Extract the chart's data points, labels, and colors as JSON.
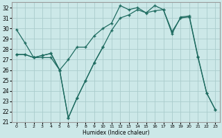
{
  "xlabel": "Humidex (Indice chaleur)",
  "bg_color": "#cce8e8",
  "grid_color": "#aacccc",
  "line_color": "#1e6b60",
  "xlim": [
    -0.5,
    23.5
  ],
  "ylim": [
    21,
    32.5
  ],
  "xticks": [
    0,
    1,
    2,
    3,
    4,
    5,
    6,
    7,
    8,
    9,
    10,
    11,
    12,
    13,
    14,
    15,
    16,
    17,
    18,
    19,
    20,
    21,
    22,
    23
  ],
  "yticks": [
    21,
    22,
    23,
    24,
    25,
    26,
    27,
    28,
    29,
    30,
    31,
    32
  ],
  "series1": {
    "x": [
      0,
      1,
      2,
      3,
      4,
      5,
      6,
      7,
      8,
      9,
      10,
      11,
      12,
      13,
      14,
      15,
      16,
      17,
      18,
      19,
      20,
      21,
      22,
      23
    ],
    "y": [
      29.9,
      28.6,
      27.2,
      27.2,
      27.2,
      26.0,
      27.0,
      28.2,
      28.2,
      29.3,
      30.0,
      30.5,
      32.2,
      31.8,
      32.0,
      31.5,
      31.7,
      31.8,
      29.7,
      31.0,
      31.1,
      27.2,
      23.8,
      22.2
    ]
  },
  "series2": {
    "x": [
      0,
      1,
      2,
      3,
      4,
      5,
      6,
      7,
      8,
      9,
      10
    ],
    "y": [
      27.5,
      27.5,
      27.2,
      27.4,
      27.6,
      26.0,
      21.4,
      23.3,
      25.0,
      26.7,
      28.2
    ]
  },
  "series3": {
    "x": [
      0,
      1,
      2,
      3,
      4,
      5,
      6,
      7,
      8,
      9,
      10,
      11,
      12,
      13,
      14,
      15,
      16,
      17,
      18,
      19,
      20,
      21,
      22,
      23
    ],
    "y": [
      27.5,
      27.5,
      27.2,
      27.4,
      27.6,
      26.0,
      21.4,
      23.3,
      25.0,
      26.7,
      28.2,
      29.8,
      31.0,
      31.3,
      31.8,
      31.5,
      32.2,
      31.8,
      29.5,
      31.1,
      31.2,
      27.3,
      23.8,
      22.2
    ]
  }
}
